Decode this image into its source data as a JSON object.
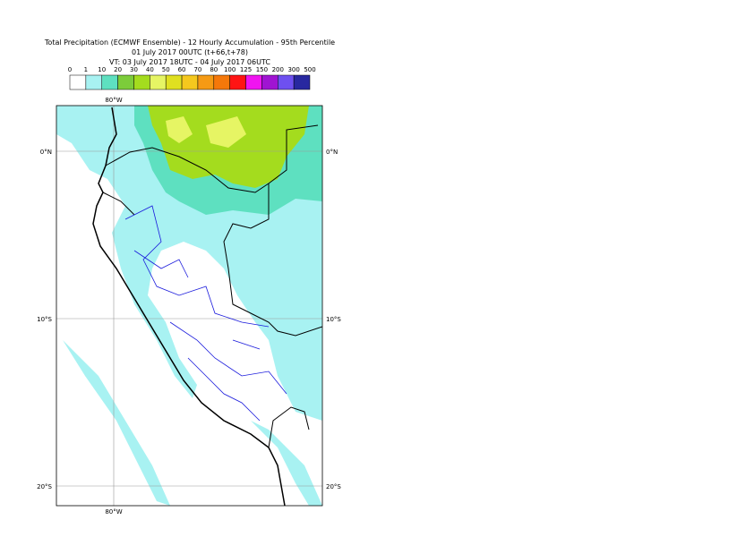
{
  "title": {
    "line1": "Total Precipitation (ECMWF Ensemble) - 12 Hourly Accumulation - 95th Percentile",
    "line2": "01 July 2017 00UTC (t+66,t+78)",
    "line3": "VT: 03 July 2017 18UTC - 04 July 2017 06UTC"
  },
  "legend": {
    "levels": [
      0,
      1,
      10,
      20,
      30,
      40,
      50,
      60,
      70,
      80,
      100,
      125,
      150,
      200,
      300,
      500
    ],
    "colors": [
      "#ffffff",
      "#a8f2f2",
      "#5ee0c0",
      "#7ccc3a",
      "#a4dc1e",
      "#e6f564",
      "#e0e020",
      "#f5c81e",
      "#f59a14",
      "#f5780a",
      "#ff1414",
      "#f014f0",
      "#a014d2",
      "#6e50f0",
      "#2828a0",
      "#141450"
    ]
  },
  "map": {
    "lon_labels": [
      "80°W"
    ],
    "lat_labels": [
      "0°N",
      "10°S",
      "20°S"
    ]
  }
}
